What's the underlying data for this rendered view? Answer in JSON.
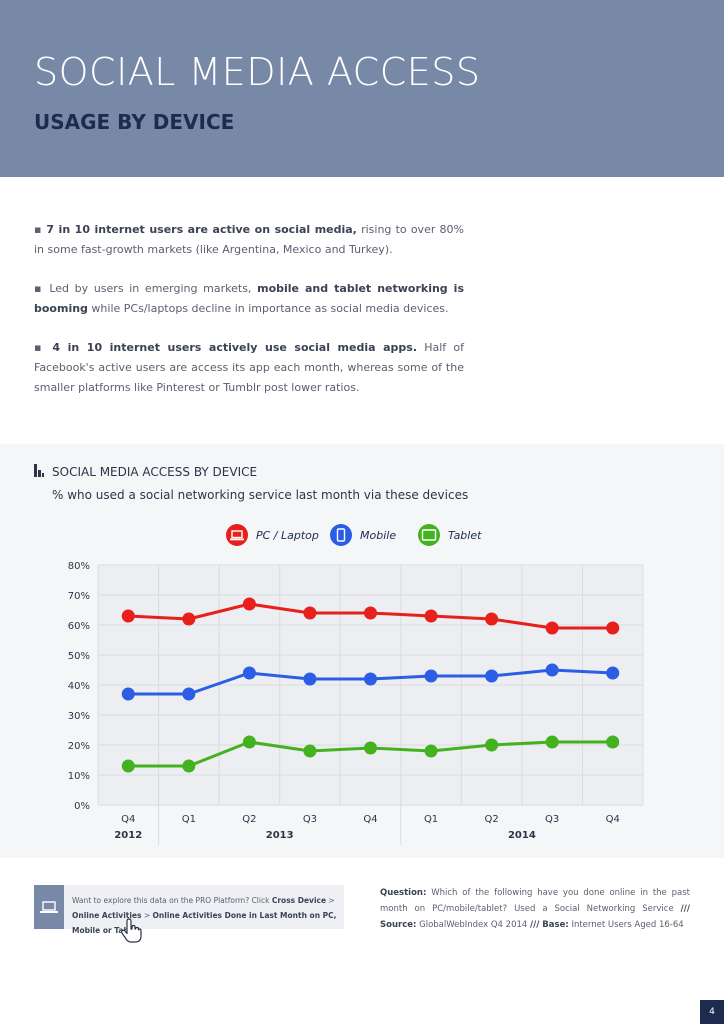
{
  "header": {
    "title": "SOCIAL MEDIA ACCESS",
    "subtitle": "USAGE BY DEVICE"
  },
  "bullets": [
    {
      "bold": "7 in 10 internet users are active on social media,",
      "rest": " rising to over 80% in some fast-growth markets (like Argentina, Mexico and Turkey)."
    },
    {
      "pre": "Led by users in emerging markets, ",
      "bold": "mobile and tablet networking is booming",
      "rest": " while PCs/laptops decline in importance as social media devices."
    },
    {
      "bold": "4 in 10 internet users actively use social media apps.",
      "rest": " Half of Facebook's active users are access its app each month, whereas some of the smaller platforms like Pinterest or Tumblr post lower ratios."
    }
  ],
  "chart_section": {
    "heading": "SOCIAL MEDIA ACCESS BY DEVICE",
    "subheading": "% who used a social networking service last month via these devices"
  },
  "chart_data": {
    "type": "line",
    "categories": [
      "Q4",
      "Q1",
      "Q2",
      "Q3",
      "Q4",
      "Q1",
      "Q2",
      "Q3",
      "Q4"
    ],
    "year_groups": [
      {
        "label": "2012",
        "start": 0,
        "end": 0
      },
      {
        "label": "2013",
        "start": 1,
        "end": 4
      },
      {
        "label": "2014",
        "start": 5,
        "end": 8
      }
    ],
    "ylim": [
      0,
      80
    ],
    "yticks": [
      0,
      10,
      20,
      30,
      40,
      50,
      60,
      70,
      80
    ],
    "ytick_labels": [
      "0%",
      "10%",
      "20%",
      "30%",
      "40%",
      "50%",
      "60%",
      "70%",
      "80%"
    ],
    "grid": true,
    "legend_position": "top-center",
    "series": [
      {
        "name": "PC / Laptop",
        "color": "#e8201c",
        "icon": "laptop-icon",
        "values": [
          63,
          62,
          67,
          64,
          64,
          63,
          62,
          59,
          59
        ]
      },
      {
        "name": "Mobile",
        "color": "#2b5ee5",
        "icon": "mobile-icon",
        "values": [
          37,
          37,
          44,
          42,
          42,
          43,
          43,
          45,
          44
        ]
      },
      {
        "name": "Tablet",
        "color": "#44b21e",
        "icon": "tablet-icon",
        "values": [
          13,
          13,
          21,
          18,
          19,
          18,
          20,
          21,
          21
        ]
      }
    ]
  },
  "info_box": {
    "pre": "Want to explore this data on the PRO Platform? Click ",
    "bold1": "Cross Device",
    "sep1": " > ",
    "bold2": "Online Activities",
    "sep2": " > ",
    "bold3": "Online Activities Done in Last Month on PC, Mobile or Tablet",
    "end": "."
  },
  "question": {
    "q_label": "Question:",
    "q_text": " Which of the following have you done online in the past month on PC/mobile/tablet? Used a Social Networking Service ",
    "sep": "///",
    "s_label": " Source:",
    "s_text": " GlobalWebIndex Q4 2014 ",
    "sep2": "///",
    "b_label": " Base:",
    "b_text": " Internet Users Aged 16-64"
  },
  "page_number": "4",
  "colors": {
    "header_bg": "#7889a8",
    "title_text": "#ffffff",
    "subtitle_text": "#1d2b4f",
    "panel_bg": "#f5f6f8"
  }
}
